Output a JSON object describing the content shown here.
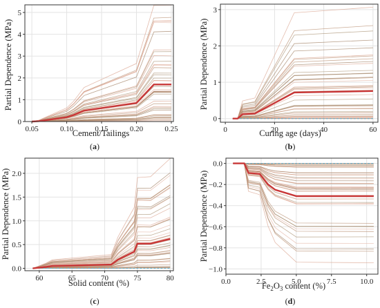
{
  "figure": {
    "panels": [
      {
        "id": "a",
        "panel_label": "(a)",
        "xlabel": "Cement/Tailings",
        "ylabel": "Partial Dependence (MPa)"
      },
      {
        "id": "b",
        "panel_label": "(b)",
        "xlabel": "Curing age (days)",
        "ylabel": "Partial Dependence (MPa)"
      },
      {
        "id": "c",
        "panel_label": "(c)",
        "xlabel": "Solid content (%)",
        "ylabel": "Partial Dependence (MPa)"
      },
      {
        "id": "d",
        "panel_label": "(d)",
        "xlabel_parts": [
          "Fe",
          "2",
          "O",
          "3",
          " content (%)"
        ],
        "ylabel": "Partial Dependence (MPa)"
      }
    ]
  },
  "colors": {
    "average_line": "#c83737",
    "ice_lines": [
      "#d9a08a",
      "#b5896a",
      "#9c7b5c",
      "#e3b4a3",
      "#a89070"
    ],
    "baseline": "#5aa9c9",
    "grid": "#e3e3e3",
    "axis": "#333333"
  },
  "chart_data": [
    {
      "type": "line",
      "panel": "a",
      "xlabel": "Cement/Tailings",
      "ylabel": "Partial Dependence (MPa)",
      "xlim": [
        0.04,
        0.253
      ],
      "ylim": [
        0,
        5.35
      ],
      "xticks": [
        0.05,
        0.1,
        0.15,
        0.2,
        0.25
      ],
      "xtick_labels": [
        "0.05",
        "0.10",
        "0.15",
        "0.20",
        "0.25"
      ],
      "yticks": [
        0,
        1,
        2,
        3,
        4,
        5
      ],
      "ytick_labels": [
        "0",
        "1",
        "2",
        "3",
        "4",
        "5"
      ],
      "grid": true,
      "average": {
        "x": [
          0.05,
          0.06,
          0.1,
          0.11,
          0.125,
          0.2,
          0.225,
          0.25
        ],
        "y": [
          0,
          0.02,
          0.2,
          0.3,
          0.5,
          0.85,
          1.7,
          1.7
        ]
      },
      "ice_spread_max": 5.3,
      "ice_line_count": 42,
      "baseline": 0
    },
    {
      "type": "line",
      "panel": "b",
      "xlabel": "Curing age (days)",
      "ylabel": "Partial Dependence (MPa)",
      "xlim": [
        -2,
        62
      ],
      "ylim": [
        -0.1,
        3.15
      ],
      "xticks": [
        0,
        20,
        40,
        60
      ],
      "xtick_labels": [
        "0",
        "20",
        "40",
        "60"
      ],
      "yticks": [
        0,
        1,
        2,
        3
      ],
      "ytick_labels": [
        "0",
        "1",
        "2",
        "3"
      ],
      "grid": true,
      "average": {
        "x": [
          3,
          5,
          7,
          12,
          28,
          60
        ],
        "y": [
          0,
          0,
          0.12,
          0.14,
          0.72,
          0.76
        ]
      },
      "ice_spread_max": 3.1,
      "ice_line_count": 42,
      "baseline": 0
    },
    {
      "type": "line",
      "panel": "c",
      "xlabel": "Solid content (%)",
      "ylabel": "Partial Dependence (MPa)",
      "xlim": [
        57.8,
        80.5
      ],
      "ylim": [
        -0.05,
        2.32
      ],
      "xticks": [
        60,
        65,
        70,
        75,
        80
      ],
      "xtick_labels": [
        "60",
        "65",
        "70",
        "75",
        "80"
      ],
      "yticks": [
        0,
        0.5,
        1.0,
        1.5,
        2.0
      ],
      "ytick_labels": [
        "0.0",
        "0.5",
        "1.0",
        "1.5",
        "2.0"
      ],
      "grid": true,
      "average": {
        "x": [
          59,
          61,
          62,
          71,
          72,
          73,
          74.5,
          75,
          76,
          77,
          80
        ],
        "y": [
          0,
          0.03,
          0.05,
          0.08,
          0.18,
          0.25,
          0.35,
          0.52,
          0.52,
          0.52,
          0.62
        ]
      },
      "ice_spread_max": 2.2,
      "ice_line_count": 42,
      "baseline": 0
    },
    {
      "type": "line",
      "panel": "d",
      "xlabel": "Fe2O3 content (%)",
      "ylabel": "Partial Dependence (MPa)",
      "xlim": [
        0,
        10.8
      ],
      "ylim": [
        -1.05,
        0.05
      ],
      "xticks": [
        0.0,
        2.5,
        5.0,
        7.5,
        10.0
      ],
      "xtick_labels": [
        "0.0",
        "2.5",
        "5.0",
        "7.5",
        "10.0"
      ],
      "yticks": [
        0.0,
        -0.2,
        -0.4,
        -0.6,
        -0.8,
        -1.0
      ],
      "ytick_labels": [
        "0.0",
        "−0.2",
        "−0.4",
        "−0.6",
        "−0.8",
        "−1.0"
      ],
      "grid": true,
      "average": {
        "x": [
          0.5,
          1.3,
          1.6,
          2.4,
          3.0,
          3.5,
          5.0,
          10.5
        ],
        "y": [
          0,
          0,
          -0.09,
          -0.1,
          -0.2,
          -0.25,
          -0.31,
          -0.31
        ]
      },
      "ice_spread_max": -0.9,
      "ice_line_count": 42,
      "baseline": 0
    }
  ]
}
